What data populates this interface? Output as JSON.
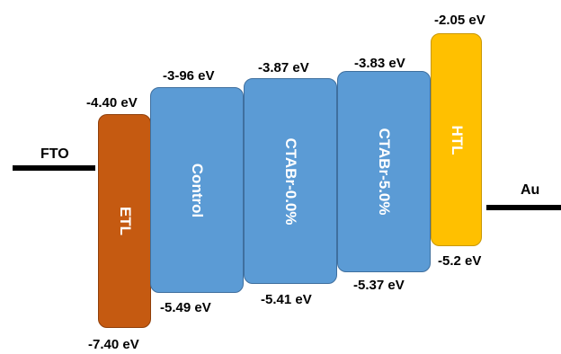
{
  "electrodes": {
    "left": {
      "label": "FTO"
    },
    "right": {
      "label": "Au"
    }
  },
  "layers": {
    "etl": {
      "label": "ETL",
      "top_level": "-4.40 eV",
      "bottom_level": "-7.40 eV",
      "color": "#c55a11"
    },
    "control": {
      "label": "Control",
      "top_level": "-3-96 eV",
      "bottom_level": "-5.49 eV",
      "color": "#5b9bd5"
    },
    "ctabr0": {
      "label": "CTABr-0.0%",
      "top_level": "-3.87 eV",
      "bottom_level": "-5.41 eV",
      "color": "#5b9bd5"
    },
    "ctabr5": {
      "label": "CTABr-5.0%",
      "top_level": "-3.83 eV",
      "bottom_level": "-5.37 eV",
      "color": "#5b9bd5"
    },
    "htl": {
      "label": "HTL",
      "top_level": "-2.05 eV",
      "bottom_level": "-5.2 eV",
      "color": "#ffc000"
    }
  }
}
